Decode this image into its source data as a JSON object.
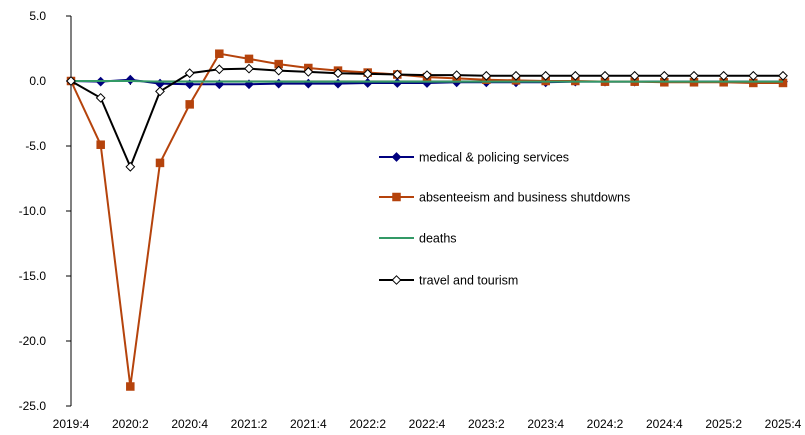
{
  "chart_data": {
    "type": "line",
    "title": "",
    "xlabel": "",
    "ylabel": "",
    "ylim": [
      -25,
      5
    ],
    "y_ticks": [
      5,
      0,
      -5,
      -10,
      -15,
      -20,
      -25
    ],
    "y_tick_labels": [
      "5.0",
      "0.0",
      "-5.0",
      "-10.0",
      "-15.0",
      "-20.0",
      "-25.0"
    ],
    "x": [
      "2019:4",
      "2020:1",
      "2020:2",
      "2020:3",
      "2020:4",
      "2021:1",
      "2021:2",
      "2021:3",
      "2021:4",
      "2022:1",
      "2022:2",
      "2022:3",
      "2022:4",
      "2023:1",
      "2023:2",
      "2023:3",
      "2023:4",
      "2024:1",
      "2024:2",
      "2024:3",
      "2024:4",
      "2025:1",
      "2025:2",
      "2025:3",
      "2025:4"
    ],
    "x_tick_labels": [
      "2019:4",
      "2020:2",
      "2020:4",
      "2021:2",
      "2021:4",
      "2022:2",
      "2022:4",
      "2023:2",
      "2023:4",
      "2024:2",
      "2024:4",
      "2025:2",
      "2025:4"
    ],
    "grid": false,
    "legend_position": "center-right",
    "series": [
      {
        "name": "medical & policing services",
        "color": "#00007f",
        "marker": "diamond-filled",
        "values": [
          0,
          -0.05,
          0.1,
          -0.2,
          -0.25,
          -0.25,
          -0.25,
          -0.2,
          -0.2,
          -0.2,
          -0.15,
          -0.15,
          -0.15,
          -0.1,
          -0.1,
          -0.1,
          -0.1,
          -0.05,
          -0.05,
          -0.05,
          -0.05,
          -0.05,
          -0.05,
          -0.05,
          -0.05
        ]
      },
      {
        "name": "absenteeism and business shutdowns",
        "color": "#b5430c",
        "marker": "square-filled",
        "values": [
          0,
          -4.9,
          -23.5,
          -6.3,
          -1.8,
          2.1,
          1.7,
          1.3,
          1.0,
          0.8,
          0.65,
          0.5,
          0.3,
          0.2,
          0.1,
          0.05,
          0.0,
          0.0,
          -0.05,
          -0.05,
          -0.1,
          -0.1,
          -0.1,
          -0.15,
          -0.15
        ]
      },
      {
        "name": "deaths",
        "color": "#339966",
        "marker": "none",
        "values": [
          0,
          0,
          0,
          -0.05,
          -0.05,
          -0.05,
          -0.05,
          -0.05,
          -0.05,
          -0.05,
          -0.05,
          -0.05,
          -0.05,
          -0.05,
          -0.05,
          -0.05,
          -0.05,
          -0.05,
          -0.05,
          -0.05,
          -0.05,
          -0.05,
          -0.05,
          -0.05,
          -0.05
        ]
      },
      {
        "name": "travel and tourism",
        "color": "#000000",
        "marker": "diamond-open",
        "values": [
          0,
          -1.3,
          -6.6,
          -0.8,
          0.6,
          0.9,
          0.95,
          0.8,
          0.7,
          0.6,
          0.55,
          0.5,
          0.45,
          0.45,
          0.4,
          0.4,
          0.4,
          0.4,
          0.4,
          0.4,
          0.4,
          0.4,
          0.4,
          0.4,
          0.4
        ]
      }
    ]
  }
}
